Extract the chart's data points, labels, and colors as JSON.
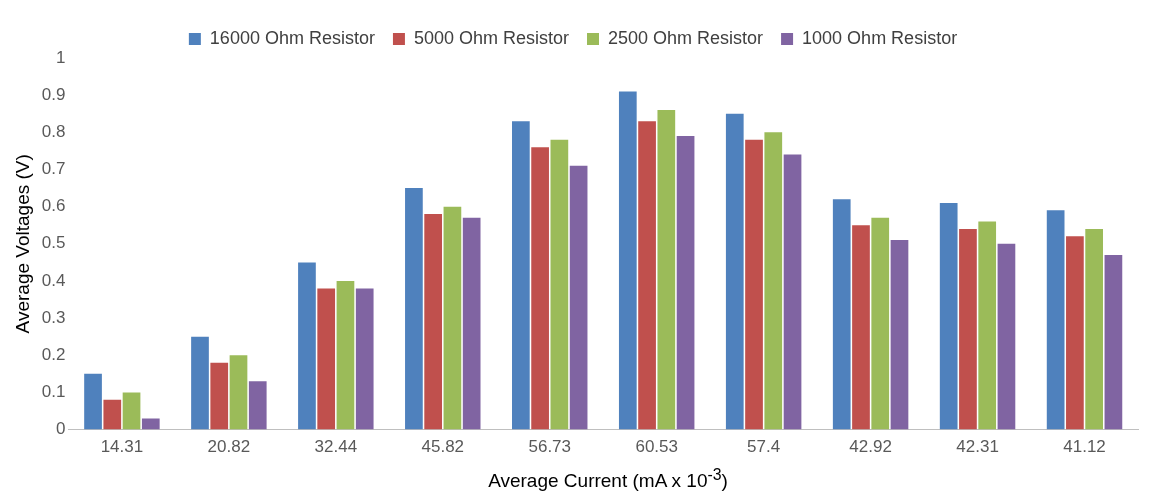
{
  "chart_data": {
    "type": "bar",
    "xlabel": "Average Current (mA x 10$^{-3}$)",
    "ylabel": "Average Voltages (V)",
    "categories": [
      "14.31",
      "20.82",
      "32.44",
      "45.82",
      "56.73",
      "60.53",
      "57.4",
      "42.92",
      "42.31",
      "41.12"
    ],
    "series": [
      {
        "name": "16000 Ohm Resistor",
        "color": "#4f81bd",
        "values": [
          0.15,
          0.25,
          0.45,
          0.65,
          0.83,
          0.91,
          0.85,
          0.62,
          0.61,
          0.59
        ]
      },
      {
        "name": "5000 Ohm Resistor",
        "color": "#c0504d",
        "values": [
          0.08,
          0.18,
          0.38,
          0.58,
          0.76,
          0.83,
          0.78,
          0.55,
          0.54,
          0.52
        ]
      },
      {
        "name": "2500 Ohm Resistor",
        "color": "#9bbb59",
        "values": [
          0.1,
          0.2,
          0.4,
          0.6,
          0.78,
          0.86,
          0.8,
          0.57,
          0.56,
          0.54
        ]
      },
      {
        "name": "1000 Ohm Resistor",
        "color": "#8064a2",
        "values": [
          0.03,
          0.13,
          0.38,
          0.57,
          0.71,
          0.79,
          0.74,
          0.51,
          0.5,
          0.47
        ]
      }
    ],
    "ylim": [
      0,
      1
    ],
    "yticks": [
      0,
      0.1,
      0.2,
      0.3,
      0.4,
      0.5,
      0.6,
      0.7,
      0.8,
      0.9,
      1
    ],
    "grid": false,
    "legend": "top"
  }
}
